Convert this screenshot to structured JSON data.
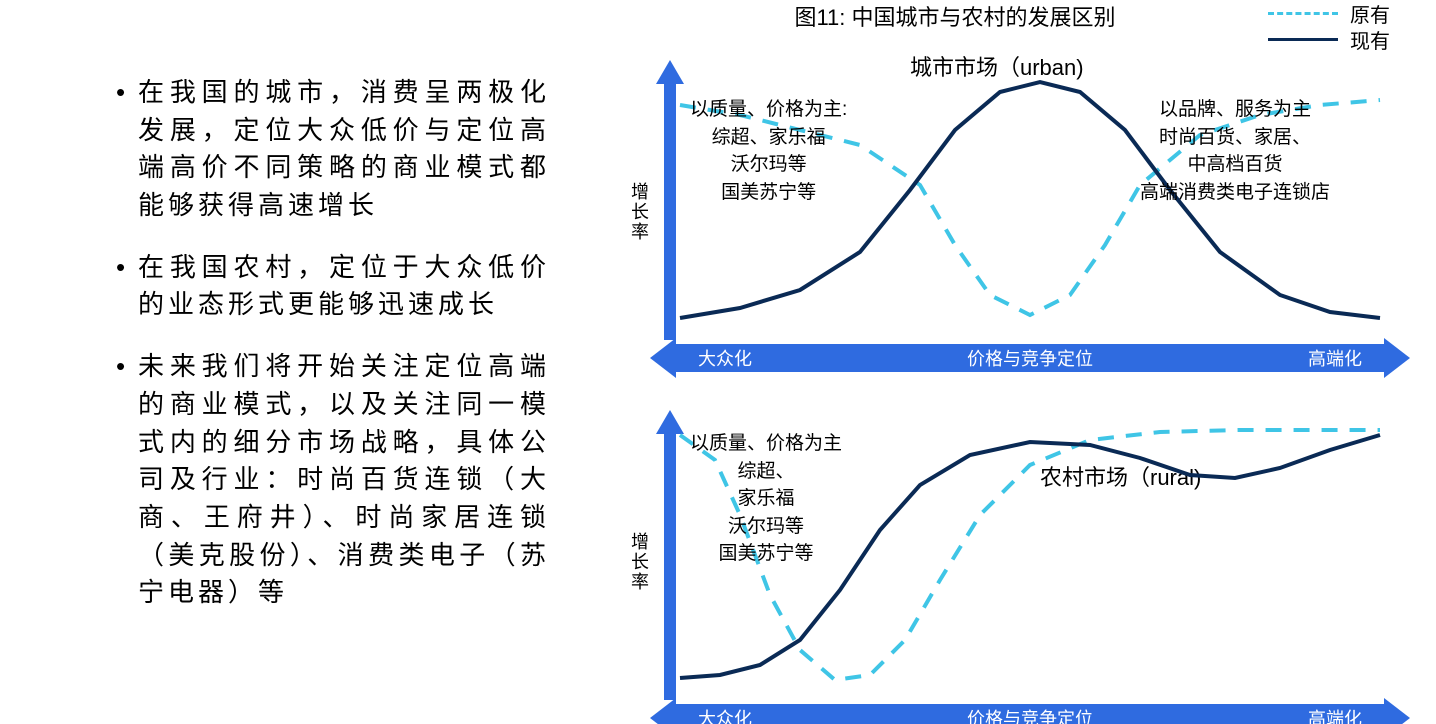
{
  "colors": {
    "blue_axis": "#2f6be0",
    "dashed_light": "#3fc5e6",
    "solid_dark": "#0a2a55",
    "text": "#000000",
    "white": "#ffffff"
  },
  "bullets": [
    "在我国的城市，消费呈两极化发展，定位大众低价与定位高端高价不同策略的商业模式都能够获得高速增长",
    "在我国农村，定位于大众低价的业态形式更能够迅速成长",
    "未来我们将开始关注定位高端的商业模式，以及关注同一模式内的细分市场战略，具体公司及行业：时尚百货连锁（大商、王府井）、时尚家居连锁（美克股份）、消费类电子（苏宁电器）等"
  ],
  "figure_title": "图11:  中国城市与农村的发展区别",
  "legend": {
    "dashed": "原有",
    "solid": "现有"
  },
  "y_label": "增长率",
  "x_axis": {
    "left": "大众化",
    "center": "价格与竞争定位",
    "right": "高端化"
  },
  "urban": {
    "subtitle": "城市市场（urban)",
    "left_annot": "以质量、价格为主:\n综超、家乐福\n沃尔玛等\n国美苏宁等",
    "right_annot": "以品牌、服务为主\n时尚百货、家居、\n中高档百货\n高端消费类电子连锁店",
    "curves": {
      "type": "line",
      "xlim": [
        0,
        700
      ],
      "ylim": [
        0,
        260
      ],
      "dashed": {
        "color": "#3fc5e6",
        "width": 4,
        "dash": "16 12",
        "points": [
          [
            0,
            225
          ],
          [
            60,
            215
          ],
          [
            120,
            200
          ],
          [
            180,
            185
          ],
          [
            240,
            145
          ],
          [
            275,
            85
          ],
          [
            310,
            35
          ],
          [
            350,
            15
          ],
          [
            390,
            35
          ],
          [
            425,
            85
          ],
          [
            460,
            145
          ],
          [
            520,
            195
          ],
          [
            580,
            215
          ],
          [
            640,
            225
          ],
          [
            700,
            230
          ]
        ]
      },
      "solid": {
        "color": "#0a2a55",
        "width": 4,
        "points": [
          [
            0,
            12
          ],
          [
            60,
            22
          ],
          [
            120,
            40
          ],
          [
            180,
            78
          ],
          [
            230,
            140
          ],
          [
            275,
            200
          ],
          [
            320,
            238
          ],
          [
            360,
            248
          ],
          [
            400,
            238
          ],
          [
            445,
            200
          ],
          [
            490,
            140
          ],
          [
            540,
            78
          ],
          [
            600,
            35
          ],
          [
            650,
            18
          ],
          [
            700,
            12
          ]
        ]
      }
    }
  },
  "rural": {
    "subtitle": "农村市场（rural)",
    "left_annot": "以质量、价格为主\n综超、\n家乐福\n沃尔玛等\n国美苏宁等",
    "curves": {
      "type": "line",
      "xlim": [
        0,
        700
      ],
      "ylim": [
        0,
        270
      ],
      "dashed": {
        "color": "#3fc5e6",
        "width": 4,
        "dash": "16 12",
        "points": [
          [
            0,
            255
          ],
          [
            35,
            230
          ],
          [
            60,
            175
          ],
          [
            90,
            95
          ],
          [
            120,
            40
          ],
          [
            155,
            10
          ],
          [
            190,
            15
          ],
          [
            225,
            50
          ],
          [
            260,
            110
          ],
          [
            300,
            175
          ],
          [
            350,
            225
          ],
          [
            410,
            250
          ],
          [
            480,
            258
          ],
          [
            560,
            260
          ],
          [
            640,
            260
          ],
          [
            700,
            260
          ]
        ]
      },
      "solid": {
        "color": "#0a2a55",
        "width": 4,
        "points": [
          [
            0,
            12
          ],
          [
            40,
            15
          ],
          [
            80,
            25
          ],
          [
            120,
            50
          ],
          [
            160,
            100
          ],
          [
            200,
            160
          ],
          [
            240,
            205
          ],
          [
            290,
            235
          ],
          [
            350,
            248
          ],
          [
            410,
            245
          ],
          [
            460,
            232
          ],
          [
            510,
            215
          ],
          [
            555,
            212
          ],
          [
            600,
            222
          ],
          [
            650,
            240
          ],
          [
            700,
            255
          ]
        ]
      }
    }
  }
}
